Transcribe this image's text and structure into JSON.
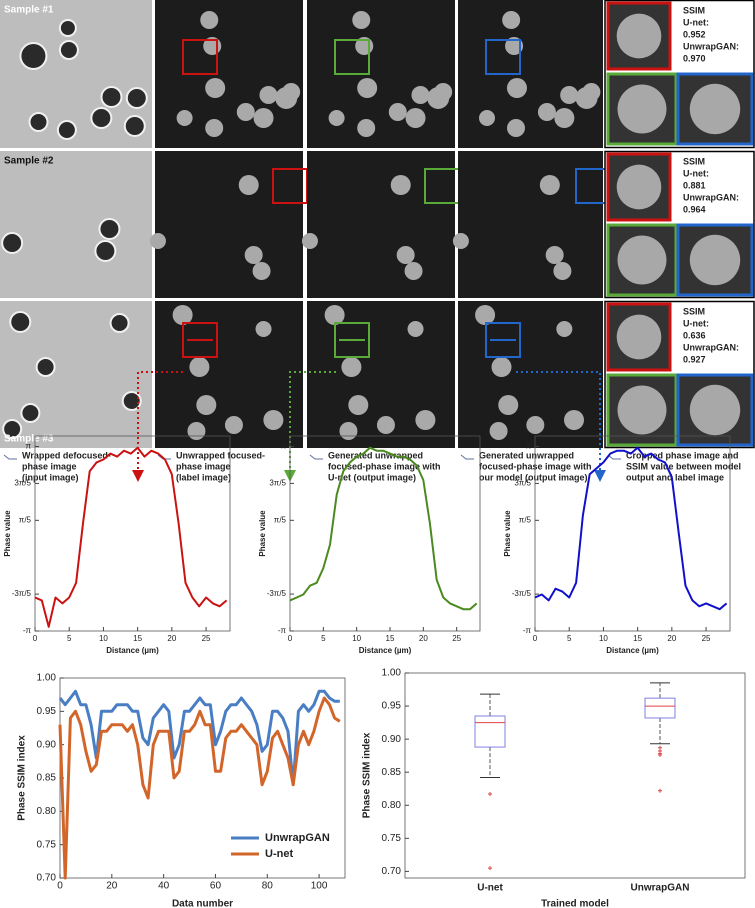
{
  "samples": [
    {
      "label": "Sample #1",
      "ssim_title": "SSIM",
      "unet_label": "U-net:",
      "unet_value": "0.952",
      "gan_label": "UnwrapGAN:",
      "gan_value": "0.970"
    },
    {
      "label": "Sample #2",
      "ssim_title": "SSIM",
      "unet_label": "U-net:",
      "unet_value": "0.881",
      "gan_label": "UnwrapGAN:",
      "gan_value": "0.964"
    },
    {
      "label": "Sample #3",
      "ssim_title": "SSIM",
      "unet_label": "U-net:",
      "unet_value": "0.636",
      "gan_label": "UnwrapGAN:",
      "gan_value": "0.927"
    }
  ],
  "captions": [
    [
      "Wrapped defocused-",
      "phase image",
      "(input image)"
    ],
    [
      "Unwrapped focused-",
      "phase image",
      "(label image)"
    ],
    [
      "Generated unwrapped",
      "focused-phase  image with",
      "U-net (output image)"
    ],
    [
      "Generated unwrapped",
      "focused-phase image with",
      "our model (output image)"
    ],
    [
      "Cropped phase image and",
      "SSIM value between model",
      "output and label image"
    ]
  ],
  "chart_data": [
    {
      "type": "line",
      "xlabel": "Distance (µm)",
      "ylabel": "Phase value",
      "x": [
        0,
        1,
        2,
        3,
        4,
        5,
        6,
        7,
        8,
        9,
        10,
        11,
        12,
        13,
        14,
        15,
        16,
        17,
        18,
        19,
        20,
        21,
        22,
        23,
        24,
        25,
        26,
        27,
        28
      ],
      "series": [
        {
          "color": "#cc1111",
          "values": [
            -2.0,
            -2.1,
            -3.0,
            -2.0,
            -2.2,
            -2.0,
            -1.5,
            0.5,
            2.3,
            2.6,
            2.7,
            2.9,
            2.8,
            3.0,
            2.9,
            3.1,
            2.8,
            3.0,
            2.9,
            2.7,
            2.2,
            0.5,
            -1.5,
            -2.0,
            -2.3,
            -2.0,
            -2.2,
            -2.3,
            -2.1
          ]
        }
      ],
      "xlim": [
        0,
        28.5
      ],
      "xticks": [
        0,
        5,
        10,
        15,
        20,
        25
      ],
      "ylim": [
        -3.1416,
        3.5
      ],
      "yticks": [
        {
          "value": 3.1416,
          "label": "π"
        },
        {
          "value": 1.885,
          "label": "3π/5"
        },
        {
          "value": 0.6283,
          "label": "π/5"
        },
        {
          "value": -1.885,
          "label": "-3π/5"
        },
        {
          "value": -3.1416,
          "label": "-π"
        }
      ]
    },
    {
      "type": "line",
      "xlabel": "Distance (µm)",
      "ylabel": "Phase value",
      "x": [
        0,
        1,
        2,
        3,
        4,
        5,
        6,
        7,
        8,
        9,
        10,
        11,
        12,
        13,
        14,
        15,
        16,
        17,
        18,
        19,
        20,
        21,
        22,
        23,
        24,
        25,
        26,
        27,
        28
      ],
      "series": [
        {
          "color": "#4a8a1e",
          "values": [
            -2.1,
            -2.0,
            -1.9,
            -1.6,
            -1.5,
            -1.0,
            -0.2,
            1.5,
            2.3,
            2.6,
            2.8,
            2.9,
            3.1,
            3.0,
            3.0,
            2.9,
            2.8,
            2.8,
            2.7,
            2.5,
            2.0,
            0.5,
            -1.4,
            -2.0,
            -2.2,
            -2.3,
            -2.4,
            -2.4,
            -2.2
          ]
        }
      ],
      "xlim": [
        0,
        28.5
      ],
      "xticks": [
        0,
        5,
        10,
        15,
        20,
        25
      ],
      "ylim": [
        -3.1416,
        3.5
      ],
      "yticks": [
        {
          "value": 3.1416,
          "label": "π"
        },
        {
          "value": 1.885,
          "label": "3π/5"
        },
        {
          "value": 0.6283,
          "label": "π/5"
        },
        {
          "value": -1.885,
          "label": "-3π/5"
        },
        {
          "value": -3.1416,
          "label": "-π"
        }
      ]
    },
    {
      "type": "line",
      "xlabel": "Distance (µm)",
      "ylabel": "Phase value",
      "x": [
        0,
        1,
        2,
        3,
        4,
        5,
        6,
        7,
        8,
        9,
        10,
        11,
        12,
        13,
        14,
        15,
        16,
        17,
        18,
        19,
        20,
        21,
        22,
        23,
        24,
        25,
        26,
        27,
        28
      ],
      "series": [
        {
          "color": "#1111cc",
          "values": [
            -2.0,
            -1.9,
            -2.1,
            -1.7,
            -1.8,
            -2.0,
            -1.5,
            0.8,
            2.2,
            2.4,
            2.6,
            2.9,
            3.0,
            3.0,
            2.9,
            3.1,
            2.8,
            2.9,
            2.7,
            2.6,
            2.1,
            0.2,
            -1.6,
            -2.1,
            -2.3,
            -2.2,
            -2.3,
            -2.4,
            -2.2
          ]
        }
      ],
      "xlim": [
        0,
        28.5
      ],
      "xticks": [
        0,
        5,
        10,
        15,
        20,
        25
      ],
      "ylim": [
        -3.1416,
        3.5
      ],
      "yticks": [
        {
          "value": 3.1416,
          "label": "π"
        },
        {
          "value": 1.885,
          "label": "3π/5"
        },
        {
          "value": 0.6283,
          "label": "π/5"
        },
        {
          "value": -1.885,
          "label": "-3π/5"
        },
        {
          "value": -3.1416,
          "label": "-π"
        }
      ]
    },
    {
      "type": "line",
      "xlabel": "Data number",
      "ylabel": "Phase SSIM index",
      "legend": "lower right",
      "x": [
        0,
        2,
        4,
        6,
        8,
        10,
        12,
        14,
        16,
        18,
        20,
        22,
        24,
        26,
        28,
        30,
        32,
        34,
        36,
        38,
        40,
        42,
        44,
        46,
        48,
        50,
        52,
        54,
        56,
        58,
        60,
        62,
        64,
        66,
        68,
        70,
        72,
        74,
        76,
        78,
        80,
        82,
        84,
        86,
        88,
        90,
        92,
        94,
        96,
        98,
        100,
        102,
        104,
        106,
        108
      ],
      "series": [
        {
          "name": "UnwrapGAN",
          "color": "#4a7ec4",
          "values": [
            0.97,
            0.96,
            0.97,
            0.98,
            0.96,
            0.96,
            0.93,
            0.88,
            0.95,
            0.95,
            0.95,
            0.96,
            0.96,
            0.96,
            0.95,
            0.95,
            0.91,
            0.9,
            0.94,
            0.95,
            0.96,
            0.95,
            0.88,
            0.9,
            0.95,
            0.95,
            0.96,
            0.97,
            0.96,
            0.96,
            0.9,
            0.92,
            0.95,
            0.96,
            0.96,
            0.97,
            0.96,
            0.95,
            0.93,
            0.89,
            0.9,
            0.95,
            0.95,
            0.94,
            0.92,
            0.84,
            0.95,
            0.96,
            0.95,
            0.96,
            0.98,
            0.98,
            0.97,
            0.965,
            0.965
          ]
        },
        {
          "name": "U-net",
          "color": "#d2662a",
          "values": [
            0.93,
            0.7,
            0.94,
            0.95,
            0.93,
            0.89,
            0.86,
            0.87,
            0.92,
            0.92,
            0.93,
            0.93,
            0.93,
            0.92,
            0.93,
            0.9,
            0.84,
            0.82,
            0.9,
            0.92,
            0.92,
            0.92,
            0.85,
            0.86,
            0.92,
            0.92,
            0.93,
            0.95,
            0.93,
            0.93,
            0.86,
            0.86,
            0.91,
            0.92,
            0.92,
            0.93,
            0.92,
            0.91,
            0.9,
            0.84,
            0.86,
            0.91,
            0.92,
            0.9,
            0.88,
            0.84,
            0.9,
            0.92,
            0.9,
            0.92,
            0.95,
            0.97,
            0.96,
            0.94,
            0.935
          ]
        }
      ],
      "xlim": [
        0,
        110
      ],
      "xticks": [
        0,
        20,
        40,
        60,
        80,
        100
      ],
      "ylim": [
        0.7,
        1.0
      ],
      "yticks": [
        {
          "value": 0.7,
          "label": "0.70"
        },
        0.75,
        {
          "value": 0.8,
          "label": "0.80"
        },
        0.85,
        {
          "value": 0.9,
          "label": "0.90"
        },
        0.95,
        {
          "value": 1.0,
          "label": "1.00"
        }
      ]
    },
    {
      "type": "box",
      "xlabel": "Trained model",
      "ylabel": "Phase SSIM index",
      "color": "#8080e0",
      "median_color": "#e04040",
      "categories": [
        "U-net",
        "UnwrapGAN"
      ],
      "boxes": [
        {
          "whislo": 0.842,
          "q1": 0.888,
          "med": 0.925,
          "q3": 0.935,
          "whishi": 0.968,
          "fliers": [
            0.817,
            0.705
          ]
        },
        {
          "whislo": 0.893,
          "q1": 0.932,
          "med": 0.95,
          "q3": 0.962,
          "whishi": 0.985,
          "fliers": [
            0.887,
            0.882,
            0.878,
            0.876,
            0.822
          ]
        }
      ],
      "ylim": [
        0.69,
        1.0
      ],
      "yticks": [
        {
          "value": 0.7,
          "label": "0.70"
        },
        0.75,
        {
          "value": 0.8,
          "label": "0.80"
        },
        0.85,
        {
          "value": 0.9,
          "label": "0.90"
        },
        0.95,
        {
          "value": 1.0,
          "label": "1.00"
        }
      ]
    }
  ]
}
